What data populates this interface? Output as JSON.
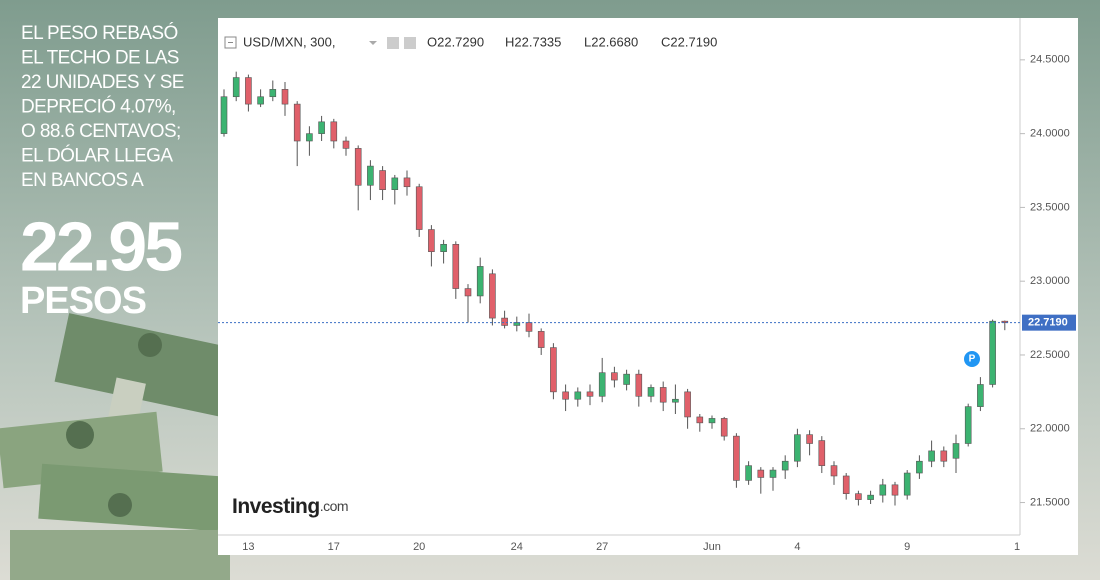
{
  "headline": {
    "lines": [
      "EL PESO REBASÓ",
      "EL TECHO DE LAS",
      "22 UNIDADES Y SE",
      "DEPRECIÓ 4.07%,",
      "O 88.6 CENTAVOS;",
      "EL DÓLAR LLEGA",
      "EN BANCOS A"
    ],
    "price": "22.95",
    "unit": "PESOS"
  },
  "chart_data": {
    "type": "candlestick",
    "header": {
      "symbol": "USD/MXN, 300,",
      "open_label": "O22.7290",
      "high_label": "H22.7335",
      "low_label": "L22.6680",
      "close_label": "C22.7190"
    },
    "brand": "Investing",
    "brand_suffix": ".com",
    "marker_label": "P",
    "up_color": "#3cb371",
    "down_color": "#e0606a",
    "categories": [
      null,
      null,
      "13",
      null,
      null,
      null,
      null,
      null,
      null,
      "17",
      null,
      null,
      null,
      null,
      null,
      null,
      "20",
      null,
      null,
      null,
      null,
      null,
      null,
      null,
      "24",
      null,
      null,
      null,
      null,
      null,
      null,
      "27",
      null,
      null,
      null,
      null,
      null,
      null,
      null,
      null,
      "Jun",
      null,
      null,
      null,
      null,
      null,
      null,
      "4",
      null,
      null,
      null,
      null,
      null,
      null,
      null,
      null,
      "9",
      null,
      null,
      null,
      null,
      null,
      null,
      null,
      null,
      "1"
    ],
    "open": [
      24.0,
      24.25,
      24.38,
      24.2,
      24.25,
      24.3,
      24.2,
      23.95,
      24.0,
      24.08,
      23.95,
      23.9,
      23.65,
      23.75,
      23.62,
      23.7,
      23.64,
      23.35,
      23.2,
      23.25,
      22.95,
      22.9,
      23.05,
      22.75,
      22.7,
      22.72,
      22.66,
      22.55,
      22.25,
      22.2,
      22.25,
      22.22,
      22.38,
      22.3,
      22.37,
      22.22,
      22.28,
      22.18,
      22.25,
      22.08,
      22.04,
      22.07,
      21.95,
      21.65,
      21.72,
      21.67,
      21.72,
      21.78,
      21.96,
      21.92,
      21.75,
      21.68,
      21.56,
      21.52,
      21.55,
      21.62,
      21.55,
      21.7,
      21.78,
      21.85,
      21.8,
      21.9,
      22.15,
      22.3,
      22.729,
      null
    ],
    "high": [
      24.3,
      24.42,
      24.4,
      24.3,
      24.36,
      24.35,
      24.22,
      24.05,
      24.12,
      24.1,
      23.98,
      23.92,
      23.82,
      23.78,
      23.72,
      23.75,
      23.66,
      23.38,
      23.28,
      23.27,
      22.98,
      23.16,
      23.08,
      22.8,
      22.76,
      22.78,
      22.68,
      22.58,
      22.3,
      22.28,
      22.3,
      22.48,
      22.42,
      22.4,
      22.4,
      22.3,
      22.32,
      22.3,
      22.27,
      22.1,
      22.09,
      22.08,
      21.97,
      21.78,
      21.74,
      21.74,
      21.82,
      22.0,
      21.99,
      21.95,
      21.78,
      21.7,
      21.58,
      21.58,
      21.66,
      21.64,
      21.72,
      21.82,
      21.92,
      21.88,
      21.96,
      22.17,
      22.35,
      22.74,
      22.7335,
      null
    ],
    "low": [
      23.98,
      24.22,
      24.15,
      24.18,
      24.22,
      24.12,
      23.78,
      23.85,
      23.95,
      23.9,
      23.85,
      23.48,
      23.55,
      23.55,
      23.52,
      23.58,
      23.3,
      23.1,
      23.12,
      22.88,
      22.72,
      22.85,
      22.7,
      22.68,
      22.66,
      22.62,
      22.5,
      22.2,
      22.12,
      22.15,
      22.16,
      22.18,
      22.28,
      22.26,
      22.15,
      22.18,
      22.12,
      22.1,
      22.0,
      21.98,
      22.0,
      21.92,
      21.6,
      21.62,
      21.56,
      21.58,
      21.66,
      21.74,
      21.82,
      21.7,
      21.62,
      21.52,
      21.48,
      21.49,
      21.5,
      21.48,
      21.52,
      21.66,
      21.74,
      21.74,
      21.7,
      21.88,
      22.12,
      22.28,
      22.668,
      null
    ],
    "close": [
      24.25,
      24.38,
      24.2,
      24.25,
      24.3,
      24.2,
      23.95,
      24.0,
      24.08,
      23.95,
      23.9,
      23.65,
      23.78,
      23.62,
      23.7,
      23.64,
      23.35,
      23.2,
      23.25,
      22.95,
      22.9,
      23.1,
      22.75,
      22.7,
      22.72,
      22.66,
      22.55,
      22.25,
      22.2,
      22.25,
      22.22,
      22.38,
      22.33,
      22.37,
      22.22,
      22.28,
      22.18,
      22.2,
      22.08,
      22.04,
      22.07,
      21.95,
      21.65,
      21.75,
      21.67,
      21.72,
      21.78,
      21.96,
      21.9,
      21.75,
      21.68,
      21.56,
      21.52,
      21.55,
      21.62,
      21.55,
      21.7,
      21.78,
      21.85,
      21.78,
      21.9,
      22.15,
      22.3,
      22.729,
      22.719,
      null
    ],
    "last_price": {
      "value": 22.719,
      "label": "22.7190"
    },
    "ylim": [
      21.28,
      24.77
    ],
    "yticks": [
      {
        "value": 21.5,
        "label": "21.5000"
      },
      {
        "value": 22,
        "label": "22.0000"
      },
      {
        "value": 22.5,
        "label": "22.5000"
      },
      {
        "value": 23,
        "label": "23.0000"
      },
      {
        "value": 23.5,
        "label": "23.5000"
      },
      {
        "value": 24,
        "label": "24.0000"
      },
      {
        "value": 24.5,
        "label": "24.5000"
      }
    ]
  }
}
